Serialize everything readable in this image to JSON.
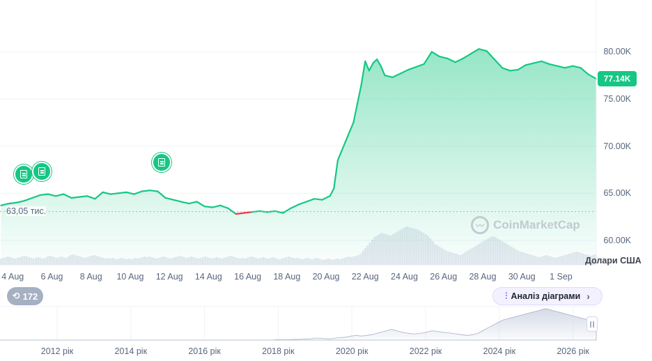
{
  "chart_data": {
    "type": "area",
    "currency_label": "Долари США",
    "watermark": "CoinMarketCap",
    "current_price_label": "77.14K",
    "reference_price_label": "63,05 тис.",
    "reference_price": 63050,
    "y_ticks": [
      "80.00K",
      "75.00K",
      "70.00K",
      "65.00K",
      "60.00K"
    ],
    "y_tick_values": [
      80000,
      75000,
      70000,
      65000,
      60000
    ],
    "ylim": [
      57400,
      85500
    ],
    "x_ticks": [
      "4 Aug",
      "6 Aug",
      "8 Aug",
      "10 Aug",
      "12 Aug",
      "14 Aug",
      "16 Aug",
      "18 Aug",
      "20 Aug",
      "22 Aug",
      "24 Aug",
      "26 Aug",
      "28 Aug",
      "30 Aug",
      "1 Sep"
    ],
    "x_tick_days": [
      3,
      5,
      7,
      9,
      11,
      13,
      15,
      17,
      19,
      21,
      23,
      25,
      27,
      29,
      31
    ],
    "xlim_days": [
      2.35,
      32.8
    ],
    "price_series": {
      "x_days": [
        2.4,
        2.8,
        3.2,
        3.6,
        4.0,
        4.4,
        4.8,
        5.2,
        5.6,
        6.0,
        6.4,
        6.8,
        7.2,
        7.6,
        8.0,
        8.4,
        8.8,
        9.2,
        9.6,
        10.0,
        10.4,
        10.8,
        11.2,
        11.6,
        12.0,
        12.4,
        12.8,
        13.2,
        13.6,
        14.0,
        14.4,
        14.8,
        15.2,
        15.6,
        16.0,
        16.4,
        16.8,
        17.2,
        17.6,
        18.0,
        18.4,
        18.8,
        19.2,
        19.4,
        19.6,
        19.8,
        20.0,
        20.2,
        20.4,
        20.6,
        20.8,
        21.0,
        21.2,
        21.4,
        21.6,
        21.8,
        22.0,
        22.4,
        22.8,
        23.2,
        23.6,
        24.0,
        24.4,
        24.8,
        25.2,
        25.6,
        26.0,
        26.4,
        26.8,
        27.2,
        27.6,
        28.0,
        28.4,
        28.8,
        29.2,
        29.6,
        30.0,
        30.4,
        30.8,
        31.2,
        31.6,
        32.0,
        32.4,
        32.8
      ],
      "y": [
        63700,
        63900,
        64000,
        64200,
        64500,
        64800,
        64900,
        64700,
        64900,
        64500,
        64600,
        64700,
        64400,
        65100,
        64900,
        65000,
        65100,
        64900,
        65200,
        65300,
        65200,
        64500,
        64300,
        64100,
        63900,
        64100,
        63600,
        63500,
        63700,
        63400,
        62800,
        62900,
        63000,
        63100,
        63000,
        63100,
        62900,
        63400,
        63800,
        64100,
        64400,
        64300,
        64700,
        65500,
        68500,
        69500,
        70500,
        71500,
        72500,
        74500,
        76500,
        79000,
        78000,
        78800,
        79200,
        78500,
        77500,
        77300,
        77700,
        78100,
        78400,
        78700,
        80000,
        79500,
        79300,
        78900,
        79300,
        79800,
        80300,
        80100,
        79200,
        78300,
        78000,
        78100,
        78600,
        78800,
        79000,
        78700,
        78500,
        78300,
        78500,
        78300,
        77600,
        77140
      ]
    },
    "volume_series": [
      9,
      10,
      11,
      12,
      11,
      10,
      9,
      10,
      11,
      12,
      13,
      12,
      11,
      10,
      9,
      10,
      11,
      10,
      9,
      10,
      12,
      13,
      12,
      11,
      10,
      11,
      12,
      11,
      10,
      12,
      14,
      15,
      14,
      13,
      12,
      11,
      10,
      11,
      12,
      13,
      14,
      13,
      12,
      11,
      10,
      9,
      10,
      9,
      10,
      9,
      8,
      9,
      10,
      9,
      8,
      9,
      8,
      9,
      10,
      9,
      10,
      11,
      12,
      11,
      12,
      11,
      10,
      9,
      10,
      11,
      12,
      11,
      10,
      9,
      10,
      11,
      12,
      13,
      12,
      11,
      10,
      11,
      12,
      11,
      10,
      9,
      10,
      11,
      12,
      11,
      10,
      9,
      10,
      11,
      10,
      9,
      10,
      11,
      12,
      13,
      12,
      11,
      10,
      9,
      10,
      9,
      10,
      11,
      12,
      11,
      10,
      9,
      10,
      11,
      10,
      9,
      10,
      11,
      10,
      9,
      8,
      9,
      10,
      11,
      12,
      11,
      10,
      9,
      10,
      9,
      8,
      9,
      10,
      9,
      8,
      9,
      10,
      9,
      8,
      7,
      8,
      9,
      8,
      7,
      8,
      9,
      8,
      9,
      10,
      11,
      12,
      11,
      12,
      13,
      14,
      16,
      20,
      24,
      28,
      32,
      36,
      40,
      42,
      44,
      46,
      45,
      44,
      43,
      42,
      44,
      46,
      48,
      50,
      52,
      54,
      55,
      54,
      53,
      52,
      51,
      50,
      48,
      46,
      44,
      42,
      38,
      34,
      30,
      28,
      26,
      24,
      22,
      20,
      19,
      18,
      17,
      16,
      15,
      14,
      16,
      18,
      20,
      22,
      24,
      26,
      28,
      30,
      32,
      34,
      36,
      38,
      40,
      41,
      40,
      38,
      36,
      34,
      32,
      30,
      28,
      26,
      24,
      22,
      20,
      19,
      18,
      17,
      16,
      15,
      14,
      13,
      12,
      11,
      12,
      13,
      14,
      13,
      12,
      11,
      10,
      11,
      12,
      13,
      14,
      15,
      16,
      17,
      18,
      19,
      18,
      17,
      16,
      15,
      14,
      13,
      14,
      15
    ],
    "navigator": {
      "x_ticks": [
        "2012 рік",
        "2014 рік",
        "2016 рік",
        "2018 рік",
        "2020 рік",
        "2022 рік",
        "2024 рік",
        "2026 рік"
      ],
      "series": [
        0,
        0,
        0,
        0,
        0,
        0,
        0,
        0,
        0,
        0,
        0,
        0,
        0,
        0,
        0,
        0,
        0,
        0,
        0,
        0,
        0,
        0,
        0,
        0,
        0,
        0,
        0,
        0,
        0,
        0,
        0,
        0,
        0,
        0,
        0,
        0,
        0,
        0,
        0,
        0,
        0,
        0,
        0,
        0,
        0,
        0,
        0,
        0,
        0,
        0,
        0,
        0,
        0,
        0,
        0,
        0,
        0,
        0,
        0,
        0,
        0,
        0,
        0,
        0,
        0,
        0,
        0,
        0,
        0,
        0,
        0,
        0,
        0,
        0,
        0,
        0,
        0,
        0,
        0,
        0,
        0,
        0,
        0,
        0,
        0,
        0,
        0,
        0,
        0,
        0,
        0,
        0,
        0,
        0,
        0,
        0,
        0,
        0,
        0,
        0,
        0,
        0,
        0,
        0,
        0,
        0,
        0,
        0,
        0,
        1,
        1,
        1,
        1,
        1,
        1,
        1,
        2,
        2,
        2,
        3,
        3,
        3,
        4,
        4,
        5,
        6,
        6,
        5,
        5,
        4,
        4,
        4,
        5,
        6,
        7,
        8,
        8,
        9,
        10,
        12,
        13,
        14,
        13,
        12,
        13,
        14,
        15,
        16,
        18,
        20,
        22,
        24,
        26,
        28,
        30,
        32,
        30,
        28,
        26,
        24,
        22,
        21,
        20,
        19,
        18,
        19,
        20,
        21,
        22,
        24,
        26,
        28,
        27,
        26,
        25,
        24,
        23,
        22,
        21,
        20,
        19,
        18,
        17,
        16,
        15,
        14,
        15,
        16,
        18,
        20,
        24,
        28,
        32,
        36,
        40,
        44,
        48,
        52,
        56,
        60,
        62,
        64,
        66,
        68,
        70,
        72,
        74,
        76,
        78,
        80,
        82,
        84,
        86,
        88,
        90,
        92,
        94,
        92,
        90,
        88,
        86,
        84,
        82,
        80,
        78,
        76,
        74,
        72,
        70,
        68,
        66,
        64,
        62,
        60,
        58,
        56,
        54
      ]
    }
  },
  "controls": {
    "history_count": "172",
    "analysis_button_label": "Аналіз діаграми"
  },
  "colors": {
    "up": "#16c784",
    "down": "#ea3943",
    "grid": "#eff2f5",
    "volume": "#cfd6e4",
    "text": "#58667e"
  }
}
